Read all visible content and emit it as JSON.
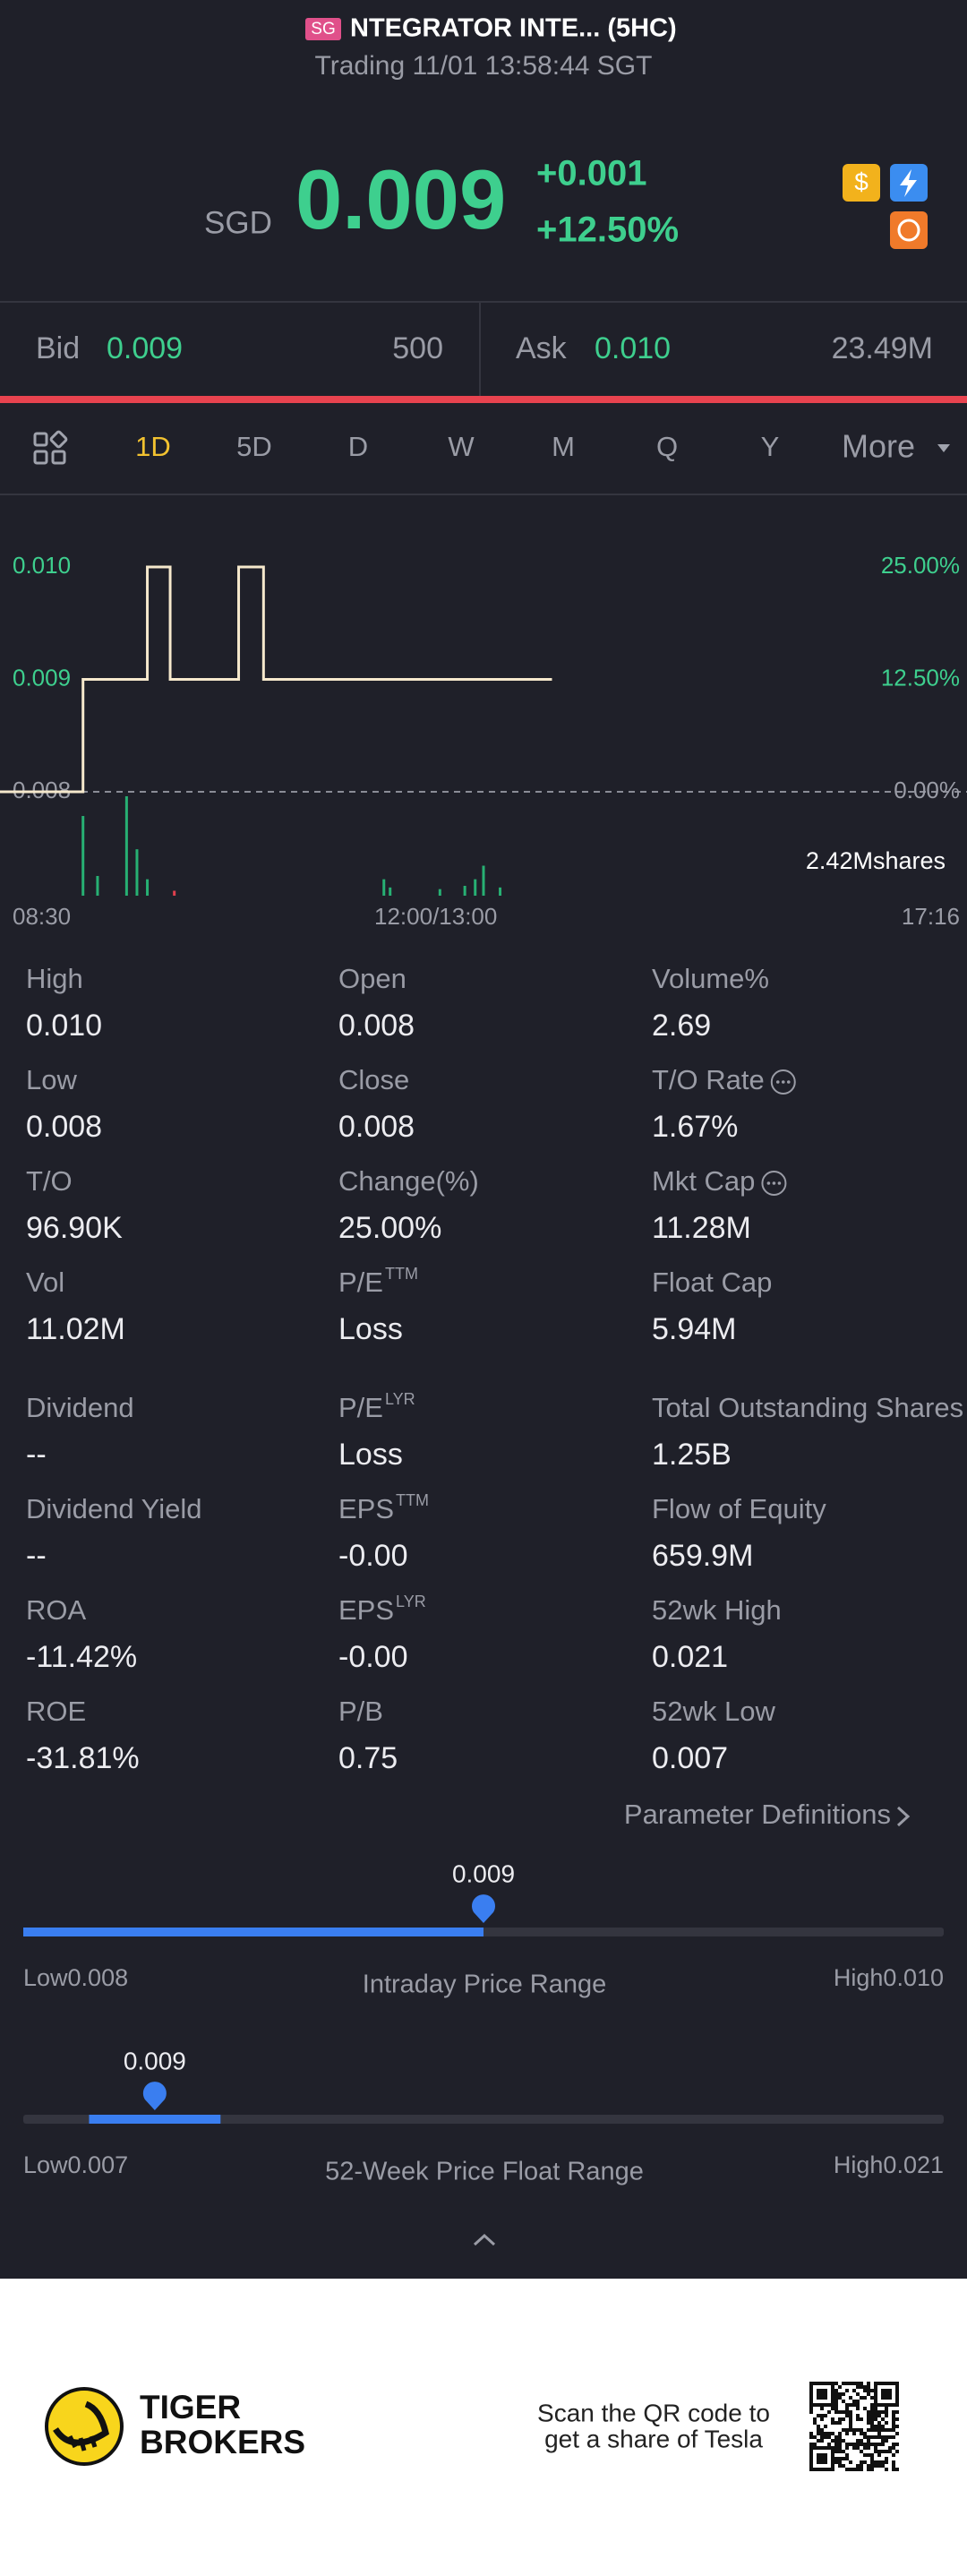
{
  "header": {
    "badge": "SG",
    "title": "NTEGRATOR INTE... (5HC)",
    "subtitle": "Trading 11/01 13:58:44 SGT"
  },
  "quote": {
    "currency": "SGD",
    "price": "0.009",
    "change": "+0.001",
    "change_pct": "+12.50%"
  },
  "bid_ask": {
    "bid_label": "Bid",
    "bid": "0.009",
    "bid_size": "500",
    "ask_label": "Ask",
    "ask": "0.010",
    "ask_size": "23.49M"
  },
  "tabs": [
    "1D",
    "5D",
    "D",
    "W",
    "M",
    "Q",
    "Y",
    "More"
  ],
  "active_tab": 0,
  "chart_data": {
    "type": "line",
    "color": "#f5e8cc",
    "x": [
      0,
      40,
      40,
      71,
      71,
      82,
      82,
      115,
      115,
      127,
      127,
      266
    ],
    "values": [
      0.008,
      0.008,
      0.009,
      0.009,
      0.01,
      0.01,
      0.009,
      0.009,
      0.01,
      0.01,
      0.009,
      0.009
    ],
    "xlim": [
      0,
      466
    ],
    "xticks": [
      {
        "value": 0,
        "label": "08:30"
      },
      {
        "value": 210,
        "label": "12:00/13:00"
      },
      {
        "value": 466,
        "label": "17:16"
      }
    ],
    "ylim": [
      0.008,
      0.01
    ],
    "yticks": [
      {
        "value": 0.01,
        "label": "0.010"
      },
      0.009,
      0.008
    ],
    "y2lim": [
      0,
      25
    ],
    "y2ticks": [
      {
        "value": 25,
        "label": "25.00%"
      },
      {
        "value": 12.5,
        "label": "12.50%"
      },
      {
        "value": 0,
        "label": "0.00%"
      }
    ],
    "volume": {
      "x": [
        40,
        47,
        61,
        66,
        71,
        84,
        185,
        188,
        212,
        224,
        229,
        233,
        241
      ],
      "values": [
        1940000,
        480000,
        2420000,
        1130000,
        400000,
        120000,
        400000,
        200000,
        160000,
        240000,
        400000,
        730000,
        200000
      ],
      "colors": [
        "#27b073",
        "#27b073",
        "#27b073",
        "#27b073",
        "#27b073",
        "#e0404e",
        "#27b073",
        "#27b073",
        "#27b073",
        "#27b073",
        "#27b073",
        "#27b073",
        "#27b073"
      ],
      "ylim": [
        0,
        2420000
      ],
      "yticks": [
        {
          "value": 2420000,
          "label": "2.42Mshares"
        }
      ]
    }
  },
  "stats": [
    {
      "label": "High",
      "value": "0.010"
    },
    {
      "label": "Open",
      "value": "0.008"
    },
    {
      "label": "Volume%",
      "value": "2.69"
    },
    {
      "label": "Low",
      "value": "0.008"
    },
    {
      "label": "Close",
      "value": "0.008"
    },
    {
      "label": "T/O Rate",
      "value": "1.67%",
      "info": true
    },
    {
      "label": "T/O",
      "value": "96.90K"
    },
    {
      "label": "Change(%)",
      "value": "25.00%"
    },
    {
      "label": "Mkt Cap",
      "value": "11.28M",
      "info": true
    },
    {
      "label": "Vol",
      "value": "11.02M"
    },
    {
      "label": "P/E",
      "sup": "TTM",
      "value": "Loss"
    },
    {
      "label": "Float Cap",
      "value": "5.94M"
    },
    {
      "label": "Dividend",
      "value": "--"
    },
    {
      "label": "P/E",
      "sup": "LYR",
      "value": "Loss"
    },
    {
      "label": "Total Outstanding Shares",
      "value": "1.25B"
    },
    {
      "label": "Dividend Yield",
      "value": "--"
    },
    {
      "label": "EPS",
      "sup": "TTM",
      "value": "-0.00"
    },
    {
      "label": "Flow of Equity",
      "value": "659.9M"
    },
    {
      "label": "ROA",
      "value": "-11.42%"
    },
    {
      "label": "EPS",
      "sup": "LYR",
      "value": "-0.00"
    },
    {
      "label": "52wk High",
      "value": "0.021"
    },
    {
      "label": "ROE",
      "value": "-31.81%"
    },
    {
      "label": "P/B",
      "value": "0.75"
    },
    {
      "label": "52wk Low",
      "value": "0.007"
    }
  ],
  "param_link": "Parameter Definitions",
  "ranges": [
    {
      "current": 0.009,
      "low_label": "Low",
      "low": 0.008,
      "high_label": "High",
      "high": {
        "value": 0.01,
        "label": "0.010"
      },
      "title": "Intraday Price Range"
    },
    {
      "current": 0.009,
      "low_label": "Low",
      "low": 0.007,
      "high_label": "High",
      "high": 0.021,
      "title": "52-Week Price Float Range",
      "band": [
        0.008,
        0.01
      ]
    }
  ],
  "footer": {
    "brand_line1": "TIGER",
    "brand_line2": "BROKERS",
    "qr_line1": "Scan the QR code to",
    "qr_line2": "get a share of Tesla"
  }
}
